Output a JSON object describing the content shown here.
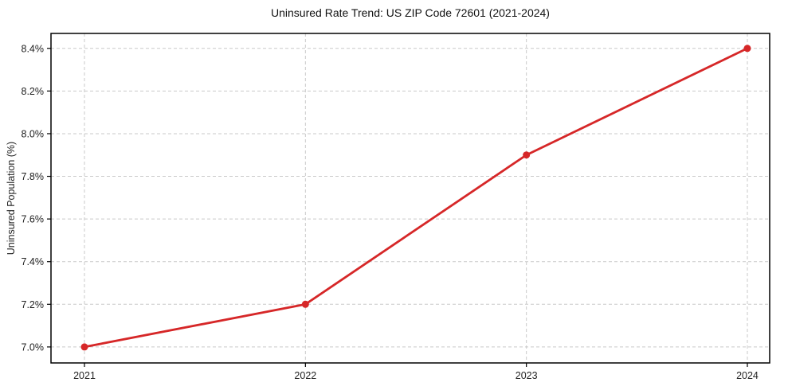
{
  "chart_data": {
    "type": "line",
    "title": "Uninsured Rate Trend: US ZIP Code 72601 (2021-2024)",
    "xlabel": "",
    "ylabel": "Uninsured Population (%)",
    "x": [
      2021,
      2022,
      2023,
      2024
    ],
    "values": [
      7.0,
      7.2,
      7.9,
      8.4
    ],
    "xtick_labels": [
      "2021",
      "2022",
      "2023",
      "2024"
    ],
    "ytick_values": [
      7.0,
      7.2,
      7.4,
      7.6,
      7.8,
      8.0,
      8.2,
      8.4
    ],
    "ytick_labels": [
      "7.0%",
      "7.2%",
      "7.4%",
      "7.6%",
      "7.8%",
      "8.0%",
      "8.2%",
      "8.4%"
    ],
    "xlim": [
      2020.8485,
      2024.101
    ],
    "ylim": [
      6.925,
      8.47
    ],
    "grid": true,
    "legend_position": "none",
    "line_color": "#d62728",
    "grid_color": "#c9c9c9",
    "axis_color": "#000000",
    "tick_label_color": "#222222",
    "background_color": "#ffffff",
    "marker": "circle"
  }
}
